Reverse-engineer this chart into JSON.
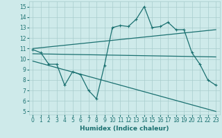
{
  "bg_color": "#ceeaea",
  "grid_color": "#a8cccc",
  "line_color": "#1a7070",
  "line_width": 0.9,
  "marker": "+",
  "marker_size": 3.5,
  "marker_edge_width": 0.8,
  "xlabel": "Humidex (Indice chaleur)",
  "xlabel_fontsize": 6.5,
  "tick_fontsize": 5.5,
  "xlim": [
    -0.5,
    23.5
  ],
  "ylim": [
    4.7,
    15.5
  ],
  "yticks": [
    5,
    6,
    7,
    8,
    9,
    10,
    11,
    12,
    13,
    14,
    15
  ],
  "xticks": [
    0,
    1,
    2,
    3,
    4,
    5,
    6,
    7,
    8,
    9,
    10,
    11,
    12,
    13,
    14,
    15,
    16,
    17,
    18,
    19,
    20,
    21,
    22,
    23
  ],
  "series": [
    {
      "x": [
        0,
        1,
        2,
        3,
        4,
        5,
        6,
        7,
        8,
        9,
        10,
        11,
        12,
        13,
        14,
        15,
        16,
        17,
        18,
        19,
        20,
        21,
        22,
        23
      ],
      "y": [
        10.9,
        10.6,
        9.5,
        9.5,
        7.5,
        8.8,
        8.5,
        7.0,
        6.2,
        9.4,
        13.0,
        13.2,
        13.1,
        13.8,
        15.0,
        13.0,
        13.1,
        13.5,
        12.8,
        12.8,
        10.6,
        9.5,
        8.0,
        7.5
      ],
      "has_marker": true
    },
    {
      "x": [
        0,
        23
      ],
      "y": [
        11.0,
        12.8
      ],
      "has_marker": false
    },
    {
      "x": [
        0,
        23
      ],
      "y": [
        10.5,
        10.2
      ],
      "has_marker": false
    },
    {
      "x": [
        0,
        23
      ],
      "y": [
        9.8,
        5.0
      ],
      "has_marker": false
    }
  ]
}
